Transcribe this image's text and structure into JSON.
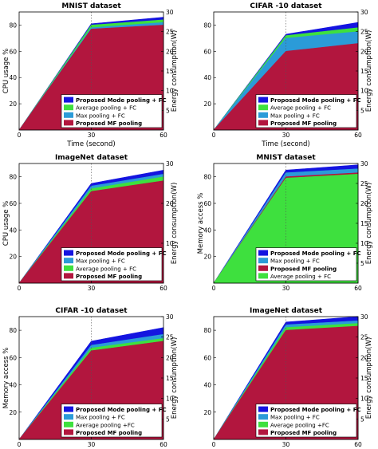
{
  "figure": {
    "xlabel": "Time (second)",
    "y_right_label": "Energy consumption(W)"
  },
  "chart_data": [
    {
      "type": "area",
      "title": "MNIST dataset",
      "ylabel": "CPU usage %",
      "y2label": "Energy consumption(W)",
      "xlabel": "Time (second)",
      "x": [
        0,
        30,
        60
      ],
      "xlim": [
        0,
        60
      ],
      "ylim": [
        0,
        90
      ],
      "yticks": [
        20,
        40,
        60,
        80
      ],
      "y2lim": [
        0,
        30
      ],
      "y2ticks": [
        5,
        10,
        15,
        20,
        25,
        30
      ],
      "xticks": [
        0,
        30,
        60
      ],
      "legend_position": "bottom-right",
      "series": [
        {
          "name": "Proposed MF pooling",
          "color": "#b2163e",
          "values": [
            0,
            77,
            80
          ]
        },
        {
          "name": "Max pooling + FC",
          "color": "#2b9bd8",
          "values": [
            0,
            78,
            82
          ]
        },
        {
          "name": "Average pooling + FC",
          "color": "#3ee03e",
          "values": [
            0,
            80,
            84
          ]
        },
        {
          "name": "Proposed Mode pooling + FC",
          "color": "#1414e0",
          "values": [
            0,
            81,
            86
          ]
        }
      ],
      "legend_order": [
        "Proposed Mode pooling + FC",
        "Average pooling + FC",
        "Max pooling + FC",
        "Proposed MF pooling"
      ]
    },
    {
      "type": "area",
      "title": "CIFAR -10 dataset",
      "ylabel": "",
      "y2label": "Energy consumption(W)",
      "xlabel": "Time (second)",
      "x": [
        0,
        30,
        60
      ],
      "xlim": [
        0,
        60
      ],
      "ylim": [
        0,
        90
      ],
      "yticks": [
        20,
        40,
        60,
        80
      ],
      "y2lim": [
        0,
        30
      ],
      "y2ticks": [
        5,
        10,
        15,
        20,
        25,
        30
      ],
      "xticks": [
        0,
        30,
        60
      ],
      "legend_position": "bottom-right",
      "series": [
        {
          "name": "Proposed MF pooling",
          "color": "#b2163e",
          "values": [
            0,
            60,
            66
          ]
        },
        {
          "name": "Max pooling + FC",
          "color": "#2b9bd8",
          "values": [
            0,
            70,
            75
          ]
        },
        {
          "name": "Average pooling + FC",
          "color": "#3ee03e",
          "values": [
            0,
            72,
            78
          ]
        },
        {
          "name": "Proposed Mode pooling + FC",
          "color": "#1414e0",
          "values": [
            0,
            73,
            82
          ]
        }
      ],
      "legend_order": [
        "Proposed Mode pooling + FC",
        "Average pooling + FC",
        "Max pooling + FC",
        "Proposed MF pooling"
      ]
    },
    {
      "type": "area",
      "title": "ImageNet dataset",
      "ylabel": "CPU usage %",
      "y2label": "Energy consumption(W)",
      "xlabel": "",
      "x": [
        0,
        30,
        60
      ],
      "xlim": [
        0,
        60
      ],
      "ylim": [
        0,
        90
      ],
      "yticks": [
        20,
        40,
        60,
        80
      ],
      "y2lim": [
        0,
        30
      ],
      "y2ticks": [
        10,
        20,
        30
      ],
      "xticks": [
        0,
        30,
        60
      ],
      "legend_position": "bottom-right",
      "series": [
        {
          "name": "Proposed MF pooling",
          "color": "#b2163e",
          "values": [
            0,
            69,
            77
          ]
        },
        {
          "name": "Average pooling + FC",
          "color": "#3ee03e",
          "values": [
            0,
            71,
            80
          ]
        },
        {
          "name": "Max pooling + FC",
          "color": "#2b9bd8",
          "values": [
            0,
            73,
            82
          ]
        },
        {
          "name": "Proposed Mode pooling + FC",
          "color": "#1414e0",
          "values": [
            0,
            75,
            85
          ]
        }
      ],
      "legend_order": [
        "Proposed Mode pooling + FC",
        "Max pooling + FC",
        "Average pooling + FC",
        "Proposed MF pooling"
      ]
    },
    {
      "type": "area",
      "title": "MNIST dataset",
      "ylabel": "Memory access %",
      "y2label": "Energy consumption(W)",
      "xlabel": "",
      "x": [
        0,
        30,
        60
      ],
      "xlim": [
        0,
        60
      ],
      "ylim": [
        0,
        90
      ],
      "yticks": [
        20,
        40,
        60,
        80
      ],
      "y2lim": [
        0,
        30
      ],
      "y2ticks": [
        5,
        10,
        15,
        20,
        25,
        30
      ],
      "xticks": [
        0,
        30,
        60
      ],
      "legend_position": "bottom-right",
      "series": [
        {
          "name": "Average pooling + FC",
          "color": "#3ee03e",
          "values": [
            0,
            79,
            82
          ]
        },
        {
          "name": "Proposed MF pooling",
          "color": "#b2163e",
          "values": [
            0,
            80,
            83
          ]
        },
        {
          "name": "Max pooling + FC",
          "color": "#2b9bd8",
          "values": [
            0,
            83,
            86
          ]
        },
        {
          "name": "Proposed Mode pooling + FC",
          "color": "#1414e0",
          "values": [
            0,
            85,
            89
          ]
        }
      ],
      "legend_order": [
        "Proposed Mode pooling + FC",
        "Max pooling + FC",
        "Proposed MF pooling",
        "Average pooling + FC"
      ]
    },
    {
      "type": "area",
      "title": "CIFAR -10 dataset",
      "ylabel": "Memory access %",
      "y2label": "Energy consumption(W)",
      "xlabel": "",
      "x": [
        0,
        30,
        60
      ],
      "xlim": [
        0,
        60
      ],
      "ylim": [
        0,
        90
      ],
      "yticks": [
        20,
        40,
        60,
        80
      ],
      "y2lim": [
        0,
        30
      ],
      "y2ticks": [
        5,
        10,
        15,
        20,
        25,
        30
      ],
      "xticks": [
        0,
        30,
        60
      ],
      "legend_position": "bottom-right",
      "series": [
        {
          "name": "Proposed MF pooling",
          "color": "#b2163e",
          "values": [
            0,
            65,
            72
          ]
        },
        {
          "name": "Average pooling +FC",
          "color": "#3ee03e",
          "values": [
            0,
            67,
            74
          ]
        },
        {
          "name": "Max pooling + FC",
          "color": "#2b9bd8",
          "values": [
            0,
            69,
            77
          ]
        },
        {
          "name": "Proposed Mode pooling + FC",
          "color": "#1414e0",
          "values": [
            0,
            72,
            82
          ]
        }
      ],
      "legend_order": [
        "Proposed Mode pooling + FC",
        "Max pooling + FC",
        "Average pooling +FC",
        "Proposed MF pooling"
      ]
    },
    {
      "type": "area",
      "title": "ImageNet dataset",
      "ylabel": "",
      "y2label": "Energy consumption(W)",
      "xlabel": "",
      "x": [
        0,
        30,
        60
      ],
      "xlim": [
        0,
        60
      ],
      "ylim": [
        0,
        90
      ],
      "yticks": [
        20,
        40,
        60,
        80
      ],
      "y2lim": [
        0,
        30
      ],
      "y2ticks": [
        5,
        10,
        15,
        20,
        25,
        30
      ],
      "xticks": [
        0,
        30,
        60
      ],
      "legend_position": "bottom-right",
      "series": [
        {
          "name": "Proposed MF pooling",
          "color": "#b2163e",
          "values": [
            0,
            80,
            83
          ]
        },
        {
          "name": "Average pooling +FC",
          "color": "#3ee03e",
          "values": [
            0,
            82,
            85
          ]
        },
        {
          "name": "Max pooling + FC",
          "color": "#2b9bd8",
          "values": [
            0,
            84,
            87
          ]
        },
        {
          "name": "Proposed Mode pooling + FC",
          "color": "#1414e0",
          "values": [
            0,
            86,
            90
          ]
        }
      ],
      "legend_order": [
        "Proposed Mode pooling + FC",
        "Max pooling + FC",
        "Average pooling +FC",
        "Proposed MF pooling"
      ]
    }
  ]
}
